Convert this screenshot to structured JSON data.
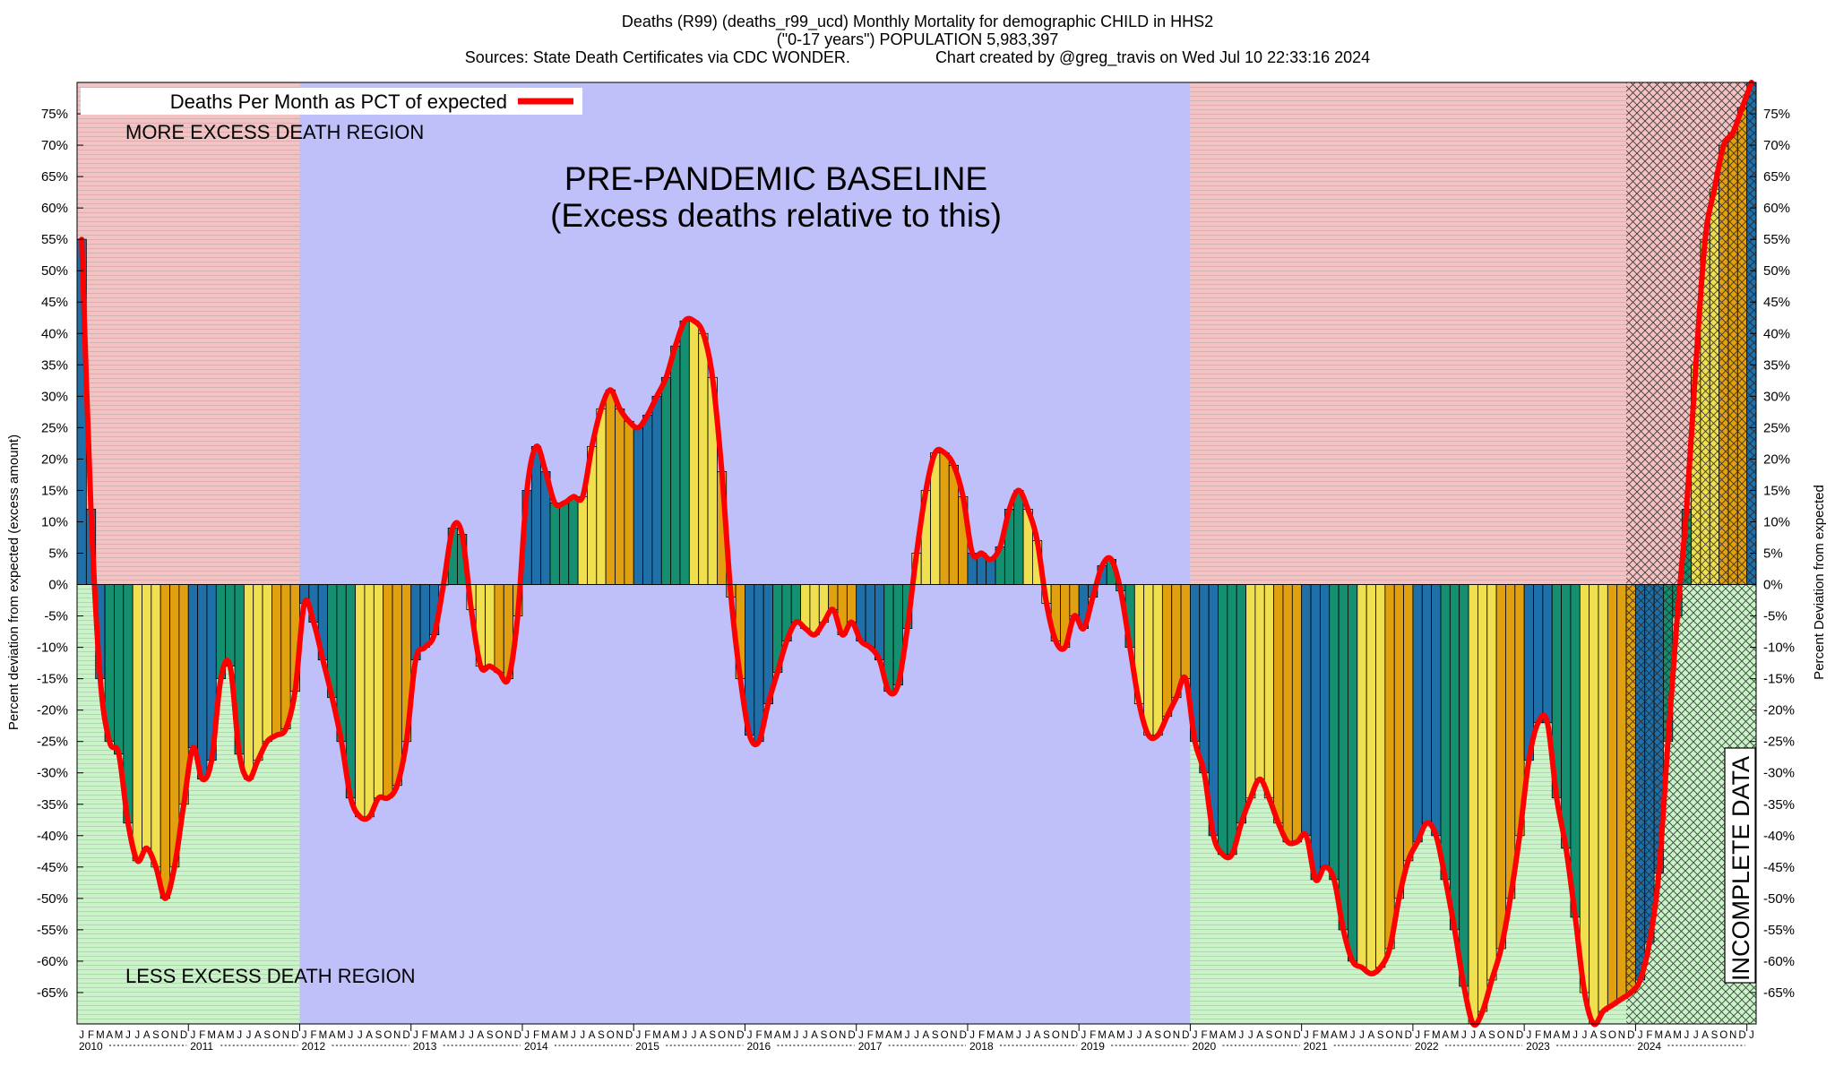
{
  "title": {
    "line1": "Deaths (R99) (deaths_r99_ucd) Monthly Mortality for demographic CHILD in HHS2",
    "line2": "(\"0-17 years\") POPULATION 5,983,397",
    "line3_left": "Sources: State Death Certificates via CDC WONDER.",
    "line3_right": "Chart created by @greg_travis on Wed Jul 10 22:33:16 2024"
  },
  "colors": {
    "excess_region": "#f4c2c2",
    "less_region": "#c8f4c8",
    "baseline_region": "#bfbffa",
    "curve": "#ff0000",
    "bar_palette": [
      "#1f6fa8",
      "#149070",
      "#f0e050",
      "#e0a010"
    ]
  },
  "chart_data": {
    "type": "bar",
    "ylabel_left": "Percent deviation from expected (excess amount)",
    "ylabel_right": "Percent Deviation from expected",
    "ylim": [
      -70,
      80
    ],
    "yticks": [
      -65,
      -60,
      -55,
      -50,
      -45,
      -40,
      -35,
      -30,
      -25,
      -20,
      -15,
      -10,
      -5,
      0,
      5,
      10,
      15,
      20,
      25,
      30,
      35,
      40,
      45,
      50,
      55,
      60,
      65,
      70,
      75
    ],
    "start": "2010-01",
    "month_letters": [
      "J",
      "F",
      "M",
      "A",
      "M",
      "J",
      "J",
      "A",
      "S",
      "O",
      "N",
      "D"
    ],
    "years": [
      "2010",
      "2011",
      "2012",
      "2013",
      "2014",
      "2015",
      "2016",
      "2017",
      "2018",
      "2019",
      "2020",
      "2021",
      "2022",
      "2023",
      "2024"
    ],
    "series": [
      {
        "name": "Deaths Per Month as PCT of expected",
        "values": [
          55,
          12,
          -15,
          -25,
          -27,
          -38,
          -44,
          -42,
          -45,
          -50,
          -45,
          -35,
          -26,
          -31,
          -28,
          -15,
          -13,
          -27,
          -31,
          -28,
          -25,
          -24,
          -23,
          -17,
          -3,
          -6,
          -12,
          -18,
          -25,
          -34,
          -37,
          -37,
          -34,
          -34,
          -32,
          -25,
          -12,
          -10,
          -8,
          0,
          9,
          8,
          -4,
          -13,
          -13,
          -14,
          -15,
          -5,
          15,
          22,
          18,
          13,
          13,
          14,
          14,
          22,
          28,
          31,
          28,
          26,
          25,
          27,
          30,
          33,
          38,
          42,
          42,
          40,
          33,
          18,
          -2,
          -15,
          -24,
          -25,
          -19,
          -14,
          -9,
          -6,
          -7,
          -8,
          -6,
          -4,
          -8,
          -6,
          -9,
          -10,
          -12,
          -17,
          -16,
          -7,
          5,
          15,
          21,
          21,
          19,
          14,
          5,
          5,
          4,
          6,
          12,
          15,
          12,
          7,
          -3,
          -9,
          -10,
          -5,
          -7,
          -2,
          3,
          4,
          -1,
          -10,
          -19,
          -24,
          -24,
          -21,
          -18,
          -15,
          -25,
          -30,
          -40,
          -43,
          -43,
          -38,
          -34,
          -31,
          -34,
          -38,
          -41,
          -41,
          -40,
          -47,
          -45,
          -47,
          -55,
          -60,
          -61,
          -62,
          -61,
          -58,
          -50,
          -44,
          -41,
          -38,
          -40,
          -47,
          -55,
          -64,
          -70,
          -68,
          -63,
          -58,
          -50,
          -40,
          -28,
          -22,
          -22,
          -34,
          -42,
          -53,
          -65,
          -70,
          -68,
          -67,
          -66,
          -65,
          -63,
          -57,
          -46,
          -25,
          -5,
          12,
          35,
          55,
          63,
          70,
          72,
          76,
          80
        ],
        "incomplete_from": "2023-12"
      }
    ],
    "legend": {
      "label": "Deaths Per Month as PCT of expected",
      "position": "top-left"
    },
    "annotations": {
      "baseline_title": "PRE-PANDEMIC BASELINE",
      "baseline_subtitle": "(Excess deaths relative to this)",
      "more_region": "MORE EXCESS DEATH REGION",
      "less_region": "LESS EXCESS DEATH REGION",
      "incomplete": "INCOMPLETE DATA"
    },
    "regions": [
      {
        "kind": "highlight",
        "from": "2010-01",
        "to": "2012-01"
      },
      {
        "kind": "baseline",
        "from": "2012-01",
        "to": "2020-01"
      },
      {
        "kind": "highlight",
        "from": "2020-01",
        "to": "2023-12"
      },
      {
        "kind": "incomplete",
        "from": "2023-12",
        "to": "2024-07"
      }
    ],
    "grid": false
  }
}
